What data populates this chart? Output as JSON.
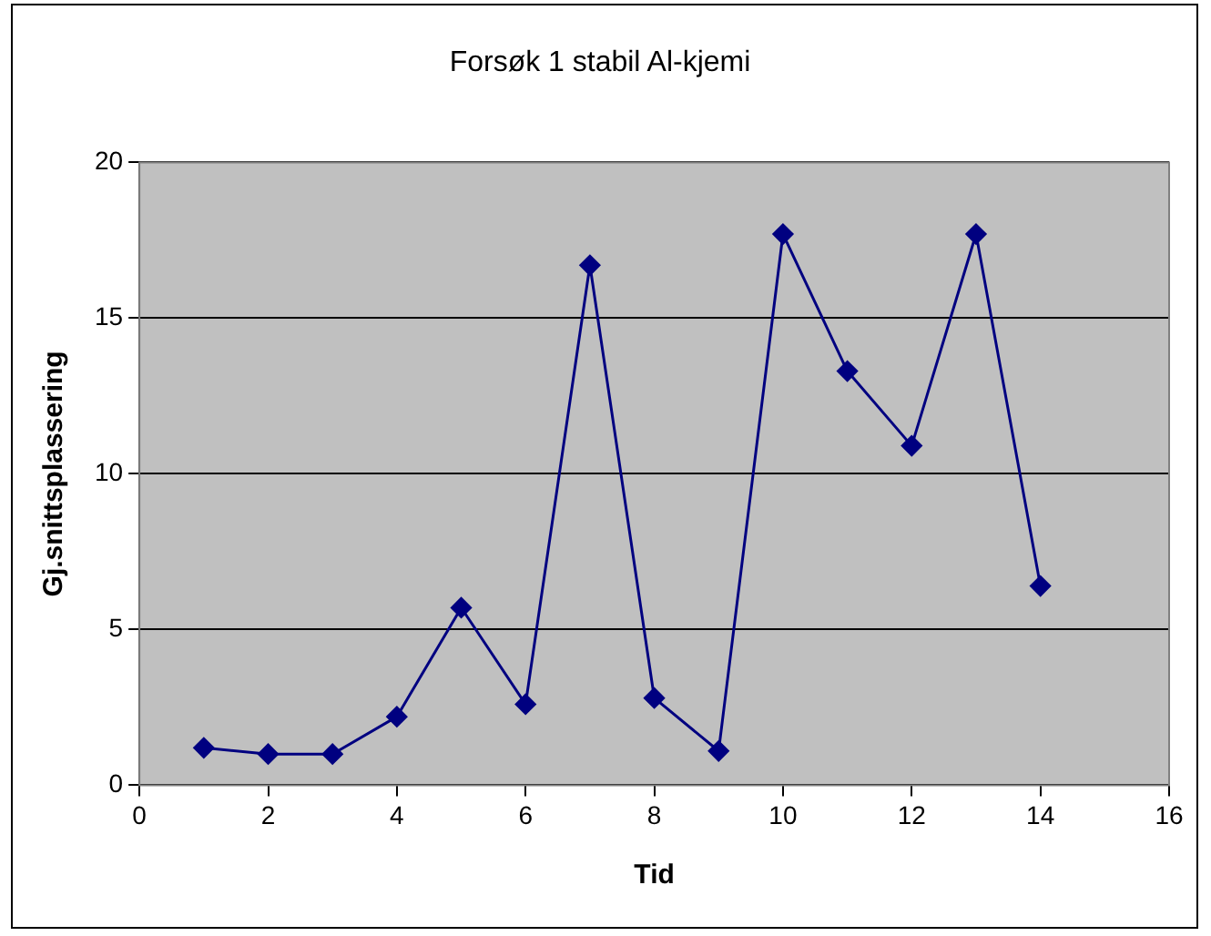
{
  "chart_data": {
    "type": "line",
    "title": "Forsøk 1 stabil Al-kjemi",
    "xlabel": "Tid",
    "ylabel": "Gj.snittsplassering",
    "x": [
      1,
      2,
      3,
      4,
      5,
      6,
      7,
      8,
      9,
      10,
      11,
      12,
      13,
      14
    ],
    "series": [
      {
        "color": "#000080",
        "values": [
          1.2,
          1.0,
          1.0,
          2.2,
          5.7,
          2.6,
          16.7,
          2.8,
          1.1,
          17.7,
          13.3,
          10.9,
          17.7,
          6.4
        ]
      }
    ],
    "xlim": [
      0,
      16
    ],
    "xticks": [
      0,
      2,
      4,
      6,
      8,
      10,
      12,
      14,
      16
    ],
    "ylim": [
      0,
      20
    ],
    "yticks": [
      0,
      5,
      10,
      15,
      20
    ],
    "grid": "y",
    "legend": false,
    "marker": "diamond",
    "line_style": "solid"
  }
}
